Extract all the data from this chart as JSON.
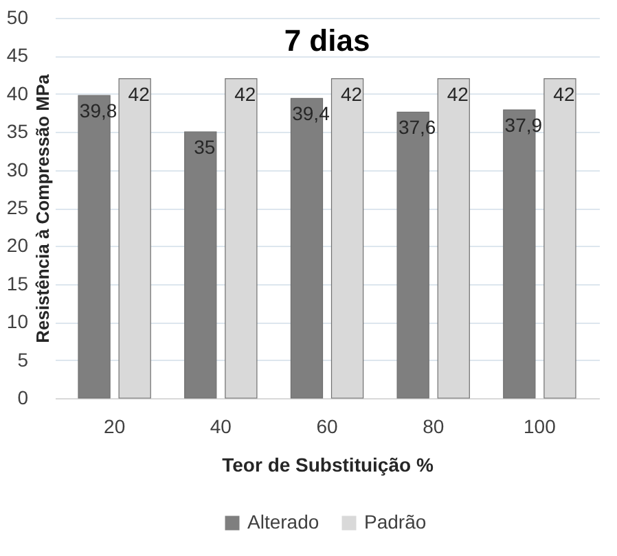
{
  "chart_data": {
    "type": "bar",
    "title": "7 dias",
    "xlabel": "Teor de Substituição %",
    "ylabel": "Resistência à Compressão MPa",
    "categories": [
      "20",
      "40",
      "60",
      "80",
      "100"
    ],
    "series": [
      {
        "name": "Alterado",
        "color": "#7f7f7f",
        "values": [
          39.8,
          35,
          39.4,
          37.6,
          37.9
        ],
        "value_labels": [
          "39,8",
          "35",
          "39,4",
          "37,6",
          "37,9"
        ]
      },
      {
        "name": "Padrão",
        "color": "#d9d9d9",
        "values": [
          42,
          42,
          42,
          42,
          42
        ],
        "value_labels": [
          "42",
          "42",
          "42",
          "42",
          "42"
        ]
      }
    ],
    "ylim": [
      0,
      50
    ],
    "yticks": [
      0,
      5,
      10,
      15,
      20,
      25,
      30,
      35,
      40,
      45,
      50
    ],
    "grid": "y",
    "legend": "bottom"
  }
}
